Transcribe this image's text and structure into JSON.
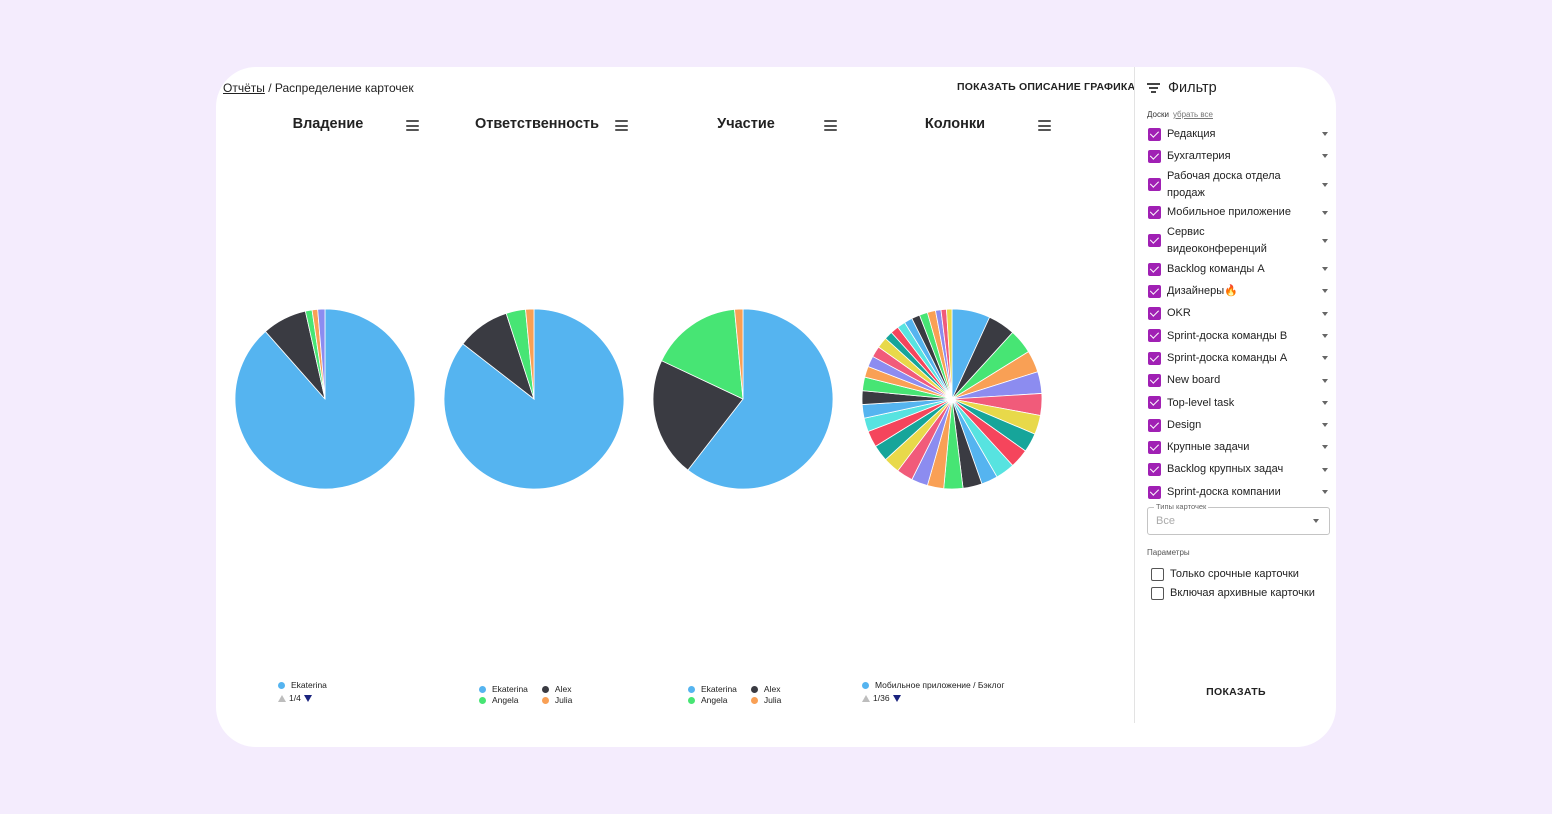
{
  "breadcrumb": {
    "link": "Отчёты",
    "separator": " / ",
    "current": "Распределение карточек"
  },
  "actions": {
    "show_description": "ПОКАЗАТЬ ОПИСАНИЕ ГРАФИКА"
  },
  "icons": {
    "chart_menu": "hamburger-menu-icon",
    "filter": "filter-lines-icon",
    "checkbox": "checkbox-checked-icon",
    "expand": "chevron-down-icon"
  },
  "colors": {
    "checkbox": "#a020b4",
    "pager_active": "#1a237e"
  },
  "chart_data": [
    {
      "type": "pie",
      "title": "Владение",
      "series": [
        {
          "name": "Ekaterina",
          "value": 88.5,
          "color": "#55b4f0"
        },
        {
          "value": 8.0,
          "color": "#3a3b42"
        },
        {
          "value": 1.2,
          "color": "#47e574"
        },
        {
          "value": 1.0,
          "color": "#f9a055"
        },
        {
          "value": 1.3,
          "color": "#8c8cf0"
        }
      ],
      "legend": {
        "entries": [
          "Ekaterina"
        ],
        "page": "1/4"
      }
    },
    {
      "type": "pie",
      "title": "Ответственность",
      "series": [
        {
          "name": "Ekaterina",
          "value": 85.5,
          "color": "#55b4f0"
        },
        {
          "name": "Alex",
          "value": 9.5,
          "color": "#3a3b42"
        },
        {
          "name": "Angela",
          "value": 3.5,
          "color": "#47e574"
        },
        {
          "name": "Julia",
          "value": 1.5,
          "color": "#f9a055"
        }
      ],
      "legend": {
        "entries": [
          "Ekaterina",
          "Alex",
          "Angela",
          "Julia"
        ]
      }
    },
    {
      "type": "pie",
      "title": "Участие",
      "series": [
        {
          "name": "Ekaterina",
          "value": 60.5,
          "color": "#55b4f0"
        },
        {
          "name": "Alex",
          "value": 21.5,
          "color": "#3a3b42"
        },
        {
          "name": "Angela",
          "value": 16.5,
          "color": "#47e574"
        },
        {
          "name": "Julia",
          "value": 1.5,
          "color": "#f9a055"
        }
      ],
      "legend": {
        "entries": [
          "Ekaterina",
          "Alex",
          "Angela",
          "Julia"
        ]
      }
    },
    {
      "type": "pie",
      "title": "Колонки",
      "series": [
        {
          "name": "Мобильное приложение / Бэклог",
          "value": 7.0,
          "color": "#55b4f0"
        },
        {
          "value": 5.0,
          "color": "#3a3b42"
        },
        {
          "value": 4.5,
          "color": "#47e574"
        },
        {
          "value": 4.0,
          "color": "#f9a055"
        },
        {
          "value": 4.0,
          "color": "#8c8cf0"
        },
        {
          "value": 4.0,
          "color": "#f15b7a"
        },
        {
          "value": 3.5,
          "color": "#e8d94a"
        },
        {
          "value": 3.5,
          "color": "#16a59a"
        },
        {
          "value": 3.5,
          "color": "#f5455c"
        },
        {
          "value": 3.5,
          "color": "#57e3e0"
        },
        {
          "value": 3.0,
          "color": "#55b4f0"
        },
        {
          "value": 3.5,
          "color": "#3a3b42"
        },
        {
          "value": 3.5,
          "color": "#47e574"
        },
        {
          "value": 3.0,
          "color": "#f9a055"
        },
        {
          "value": 3.0,
          "color": "#8c8cf0"
        },
        {
          "value": 3.0,
          "color": "#f15b7a"
        },
        {
          "value": 3.0,
          "color": "#e8d94a"
        },
        {
          "value": 3.0,
          "color": "#16a59a"
        },
        {
          "value": 3.0,
          "color": "#f5455c"
        },
        {
          "value": 2.5,
          "color": "#57e3e0"
        },
        {
          "value": 2.5,
          "color": "#55b4f0"
        },
        {
          "value": 2.5,
          "color": "#3a3b42"
        },
        {
          "value": 2.5,
          "color": "#47e574"
        },
        {
          "value": 2.0,
          "color": "#f9a055"
        },
        {
          "value": 2.0,
          "color": "#8c8cf0"
        },
        {
          "value": 2.0,
          "color": "#f15b7a"
        },
        {
          "value": 2.0,
          "color": "#e8d94a"
        },
        {
          "value": 1.5,
          "color": "#16a59a"
        },
        {
          "value": 1.5,
          "color": "#f5455c"
        },
        {
          "value": 1.5,
          "color": "#57e3e0"
        },
        {
          "value": 1.5,
          "color": "#55b4f0"
        },
        {
          "value": 1.5,
          "color": "#3a3b42"
        },
        {
          "value": 1.5,
          "color": "#47e574"
        },
        {
          "value": 1.5,
          "color": "#f9a055"
        },
        {
          "value": 1.0,
          "color": "#8c8cf0"
        },
        {
          "value": 1.0,
          "color": "#f15b7a"
        },
        {
          "value": 1.0,
          "color": "#e8d94a"
        }
      ],
      "legend": {
        "entries": [
          "Мобильное приложение / Бэклог"
        ],
        "page": "1/36"
      }
    }
  ],
  "filter": {
    "title": "Фильтр",
    "boards_label": "Доски",
    "clear_all": "убрать все",
    "boards": [
      {
        "label": "Редакция",
        "checked": true
      },
      {
        "label": "Бухгалтерия",
        "checked": true
      },
      {
        "label": "Рабочая доска отдела продаж",
        "checked": true
      },
      {
        "label": "Мобильное приложение",
        "checked": true
      },
      {
        "label": "Сервис видеоконференций",
        "checked": true
      },
      {
        "label": "Backlog команды А",
        "checked": true
      },
      {
        "label": "Дизайнеры🔥",
        "checked": true
      },
      {
        "label": "OKR",
        "checked": true
      },
      {
        "label": "Sprint-доска команды В",
        "checked": true
      },
      {
        "label": "Sprint-доска команды А",
        "checked": true
      },
      {
        "label": "New board",
        "checked": true
      },
      {
        "label": "Top-level task",
        "checked": true
      },
      {
        "label": "Design",
        "checked": true
      },
      {
        "label": "Крупные задачи",
        "checked": true
      },
      {
        "label": "Backlog крупных задач",
        "checked": true
      },
      {
        "label": "Sprint-доска компании",
        "checked": true
      }
    ],
    "card_types": {
      "label": "Типы карточек",
      "value": "Все"
    },
    "params_label": "Параметры",
    "params": [
      {
        "label": "Только срочные карточки",
        "checked": false
      },
      {
        "label": "Включая архивные карточки",
        "checked": false
      }
    ],
    "submit": "ПОКАЗАТЬ"
  }
}
